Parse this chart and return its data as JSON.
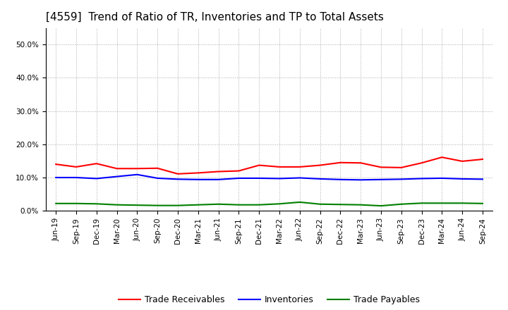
{
  "title": "[4559]  Trend of Ratio of TR, Inventories and TP to Total Assets",
  "x_labels": [
    "Jun-19",
    "Sep-19",
    "Dec-19",
    "Mar-20",
    "Jun-20",
    "Sep-20",
    "Dec-20",
    "Mar-21",
    "Jun-21",
    "Sep-21",
    "Dec-21",
    "Mar-22",
    "Jun-22",
    "Sep-22",
    "Dec-22",
    "Mar-23",
    "Jun-23",
    "Sep-23",
    "Dec-23",
    "Mar-24",
    "Jun-24",
    "Sep-24"
  ],
  "trade_receivables": [
    14.0,
    13.2,
    14.2,
    12.7,
    12.7,
    12.8,
    11.1,
    11.4,
    11.8,
    12.0,
    13.7,
    13.2,
    13.2,
    13.7,
    14.5,
    14.4,
    13.1,
    13.0,
    14.4,
    16.1,
    14.9,
    15.5
  ],
  "inventories": [
    10.0,
    10.0,
    9.7,
    10.3,
    10.9,
    9.8,
    9.5,
    9.4,
    9.4,
    9.8,
    9.8,
    9.7,
    9.9,
    9.6,
    9.4,
    9.3,
    9.4,
    9.5,
    9.7,
    9.8,
    9.6,
    9.5
  ],
  "trade_payables": [
    2.2,
    2.2,
    2.1,
    1.8,
    1.7,
    1.6,
    1.6,
    1.8,
    2.0,
    1.8,
    1.8,
    2.1,
    2.6,
    2.0,
    1.9,
    1.8,
    1.5,
    2.0,
    2.3,
    2.3,
    2.3,
    2.2
  ],
  "colors": {
    "trade_receivables": "#FF0000",
    "inventories": "#0000FF",
    "trade_payables": "#008000"
  },
  "legend_labels": [
    "Trade Receivables",
    "Inventories",
    "Trade Payables"
  ],
  "ylim": [
    0,
    55
  ],
  "yticks": [
    0,
    10,
    20,
    30,
    40,
    50
  ],
  "ytick_labels": [
    "0.0%",
    "10.0%",
    "20.0%",
    "30.0%",
    "40.0%",
    "50.0%"
  ],
  "background_color": "#FFFFFF",
  "plot_bg_color": "#FFFFFF",
  "grid_color": "#AAAAAA",
  "title_fontsize": 11,
  "tick_fontsize": 7.5,
  "legend_fontsize": 9,
  "line_width": 1.5
}
